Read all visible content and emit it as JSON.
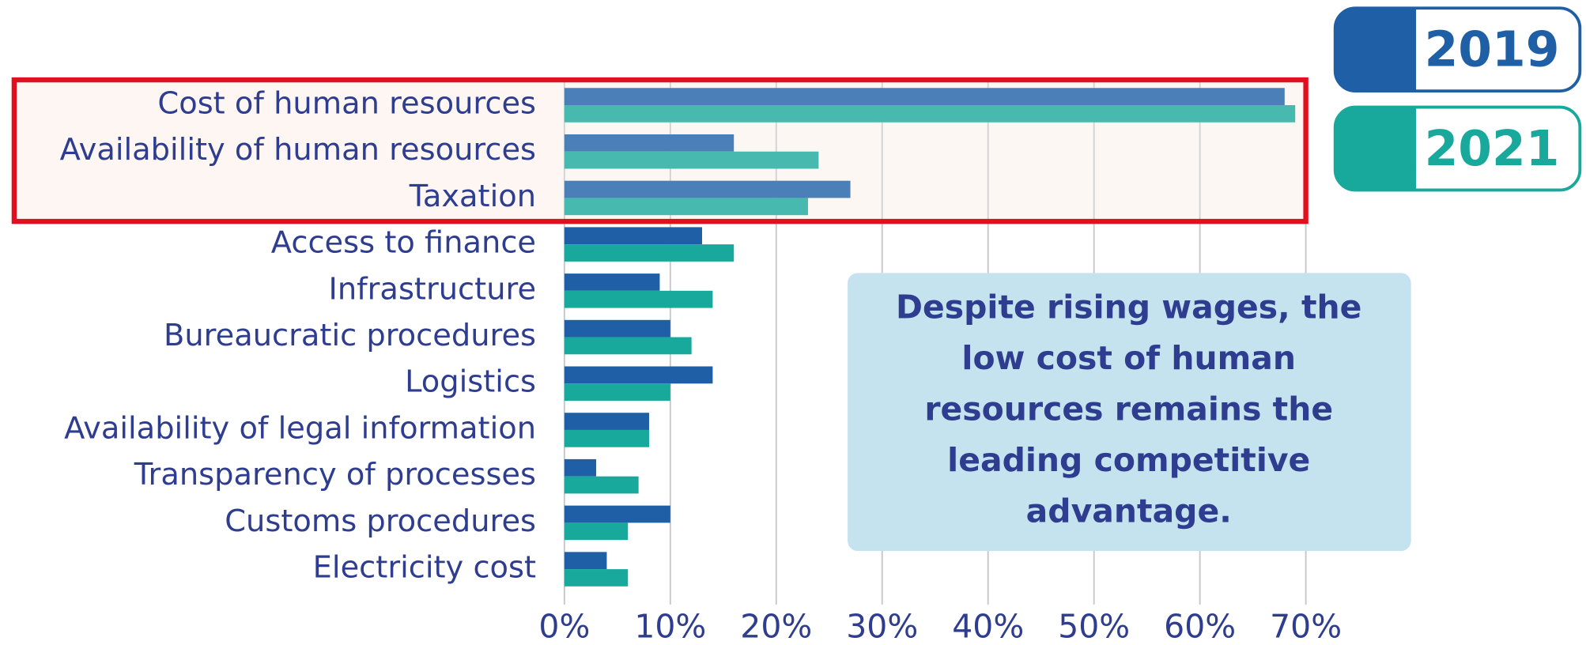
{
  "chart_data": {
    "type": "barh",
    "categories": [
      "Cost of human resources",
      "Availability of human resources",
      "Taxation",
      "Access to finance",
      "Infrastructure",
      "Bureaucratic procedures",
      "Logistics",
      "Availability of legal information",
      "Transparency of processes",
      "Customs procedures",
      "Electricity cost"
    ],
    "series": [
      {
        "name": "2019",
        "color": "#1f5fa6",
        "values": [
          68,
          16,
          27,
          13,
          9,
          10,
          14,
          8,
          3,
          10,
          4
        ]
      },
      {
        "name": "2021",
        "color": "#19a89c",
        "values": [
          69,
          24,
          23,
          16,
          14,
          12,
          10,
          8,
          7,
          6,
          6
        ]
      }
    ],
    "xlim": [
      0,
      70
    ],
    "xticks": [
      {
        "value": 0,
        "label": "0%"
      },
      {
        "value": 10,
        "label": "10%"
      },
      {
        "value": 20,
        "label": "20%"
      },
      {
        "value": 30,
        "label": "30%"
      },
      {
        "value": 40,
        "label": "40%"
      },
      {
        "value": 50,
        "label": "50%"
      },
      {
        "value": 60,
        "label": "60%"
      },
      {
        "value": 70,
        "label": "70%"
      }
    ],
    "grid": true,
    "annotation": [
      "Despite rising wages, the",
      "low cost of human",
      "resources remains the",
      "leading competitive",
      "advantage."
    ]
  }
}
